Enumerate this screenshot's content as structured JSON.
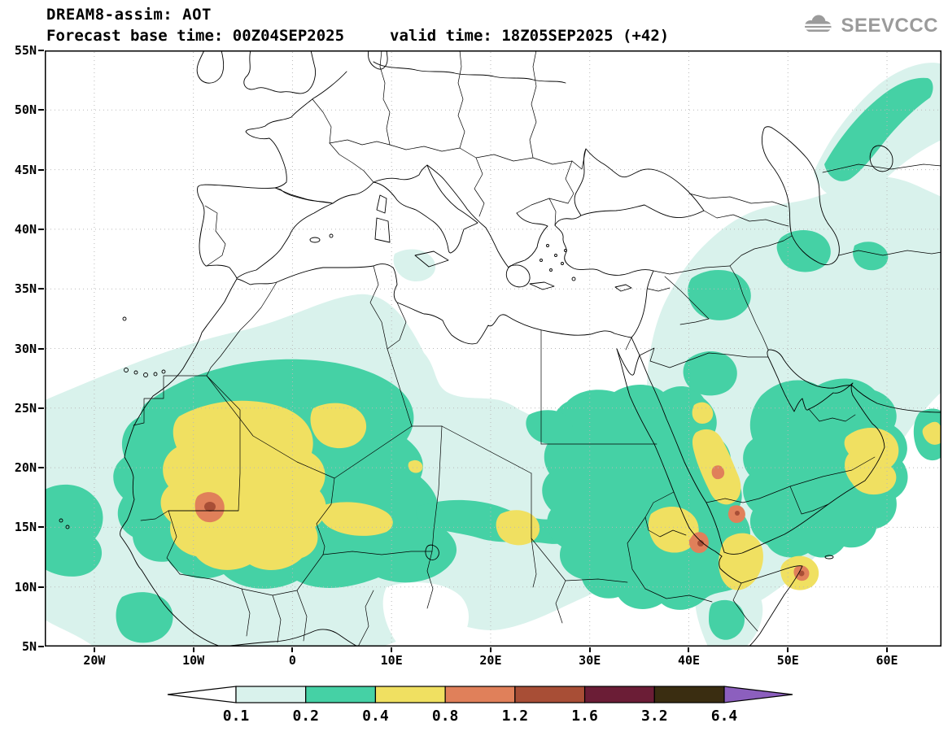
{
  "header": {
    "title": "DREAM8-assim: AOT",
    "base_time": "Forecast base time: 00Z04SEP2025",
    "valid_time": "valid time: 18Z05SEP2025 (+42)",
    "logo_text": "SEEVCCC"
  },
  "chart_data": {
    "type": "heatmap",
    "subtype": "filled-contour geographic map",
    "variable": "AOT",
    "model": "DREAM8-assim",
    "base_time": "00Z04SEP2025",
    "valid_time": "18Z05SEP2025",
    "lead": "+42",
    "x_axis": {
      "kind": "longitude",
      "range": [
        -25,
        65.5
      ],
      "ticks": [
        {
          "value": -20,
          "label": "20W"
        },
        {
          "value": -10,
          "label": "10W"
        },
        {
          "value": 0,
          "label": "0"
        },
        {
          "value": 10,
          "label": "10E"
        },
        {
          "value": 20,
          "label": "20E"
        },
        {
          "value": 30,
          "label": "30E"
        },
        {
          "value": 40,
          "label": "40E"
        },
        {
          "value": 50,
          "label": "50E"
        },
        {
          "value": 60,
          "label": "60E"
        }
      ]
    },
    "y_axis": {
      "kind": "latitude",
      "range": [
        5,
        55
      ],
      "ticks": [
        {
          "value": 55,
          "label": "55N"
        },
        {
          "value": 50,
          "label": "50N"
        },
        {
          "value": 45,
          "label": "45N"
        },
        {
          "value": 40,
          "label": "40N"
        },
        {
          "value": 35,
          "label": "35N"
        },
        {
          "value": 30,
          "label": "30N"
        },
        {
          "value": 25,
          "label": "25N"
        },
        {
          "value": 20,
          "label": "20N"
        },
        {
          "value": 15,
          "label": "15N"
        },
        {
          "value": 10,
          "label": "10N"
        },
        {
          "value": 5,
          "label": "5N"
        }
      ]
    },
    "levels": [
      0.1,
      0.2,
      0.4,
      0.8,
      1.2,
      1.6,
      3.2,
      6.4
    ],
    "colorbar": {
      "labels": [
        "0.1",
        "0.2",
        "0.4",
        "0.8",
        "1.2",
        "1.6",
        "3.2",
        "6.4"
      ],
      "colors": [
        "#ffffff",
        "#d9f2ec",
        "#45d1a5",
        "#f0e061",
        "#e0805a",
        "#a84e36",
        "#6b1d36",
        "#3a2d11",
        "#8c5fbe"
      ]
    },
    "grid": "dotted, every 10 deg lon / 5 deg lat",
    "regions": [
      {
        "level": "0.1-0.2",
        "color": "#d9f2ec",
        "areas": [
          "broad band across Sahara and Sahel from the Atlantic (25W) to the Red Sea",
          "eastern Mediterranean, Levant, Arabian Peninsula, Iran and Caucasus/Caspian area",
          "band curving through the northeast corner near 55-65E, 45-53N",
          "central Mediterranean south of Sicily"
        ]
      },
      {
        "level": "0.2-0.4",
        "color": "#45d1a5",
        "areas": [
          "large area over Mauritania, Mali, southern Algeria and Niger (20W-10E, 10-30N)",
          "Sahel belt extending east toward Chad",
          "Sudan, Ethiopia, Red Sea and western Arabian Peninsula",
          "eastern Arabia, Oman and southern Iran coast",
          "teal arc northeast of the Caspian Sea and patches over eastern Turkey and northern Saudi Arabia",
          "spots at the far western map edge near 15-20N and 8-10N"
        ]
      },
      {
        "level": "0.4-0.8",
        "color": "#f0e061",
        "areas": [
          "core over western Sahara / Mauritania / Mali (about 18W-2W, 11-27N)",
          "secondary lobe over western Algeria near 0E, 25-28N",
          "spot near the Chad-Sudan border (about 22E, 15N)",
          "patches along both Red Sea coasts, Eritrea-Ethiopia and Yemen",
          "spot over Oman/UAE (about 53-59E, 18-23N)",
          "spot at the Horn of Africa (about 51E, 11N)",
          "small spot at the right map edge near 26N"
        ]
      },
      {
        "level": "0.8-1.2",
        "color": "#e0805a",
        "areas": [
          "maximum over Mauritania-Mali (about 8W, 16-17N)",
          "spots along the southern Red Sea (about 40-44E, 15-20N)",
          "spot near the Horn of Africa (about 51E, 11N)"
        ]
      },
      {
        "level": "1.2-1.6",
        "color": "#a84e36",
        "areas": [
          "small cores embedded in the Mauritania, southern Red Sea and Horn of Africa maxima"
        ]
      }
    ]
  }
}
